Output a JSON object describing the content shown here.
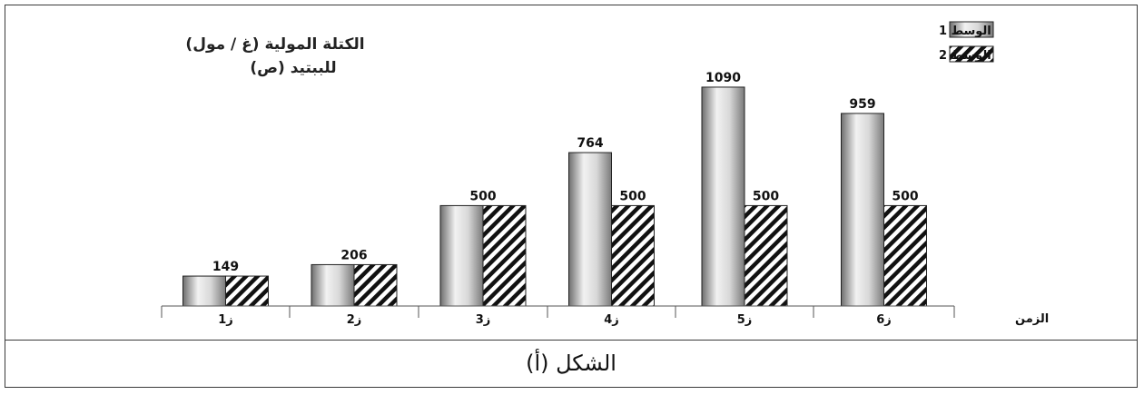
{
  "chart_data": {
    "type": "bar",
    "title_line1": "الكتلة المولية (غ / مول)",
    "title_line2": "للببتيد (ص)",
    "xlabel": "الزمن",
    "categories": [
      "ز1",
      "ز2",
      "ز3",
      "ز4",
      "ز5",
      "ز6"
    ],
    "series": [
      {
        "name": "الوسط 1",
        "values": [
          149,
          206,
          500,
          764,
          1090,
          959
        ],
        "fill": "gradient-gray"
      },
      {
        "name": "الوسط 2",
        "values": [
          149,
          206,
          500,
          500,
          500,
          500
        ],
        "fill": "diagonal-hatch"
      }
    ],
    "ylim": [
      0,
      1135
    ],
    "grid": false,
    "legend_position": "top-right",
    "colors": {
      "bar_edge": "#222222",
      "hatch": "#111111",
      "axis": "#555555"
    }
  },
  "caption": "الشكل (أ)"
}
